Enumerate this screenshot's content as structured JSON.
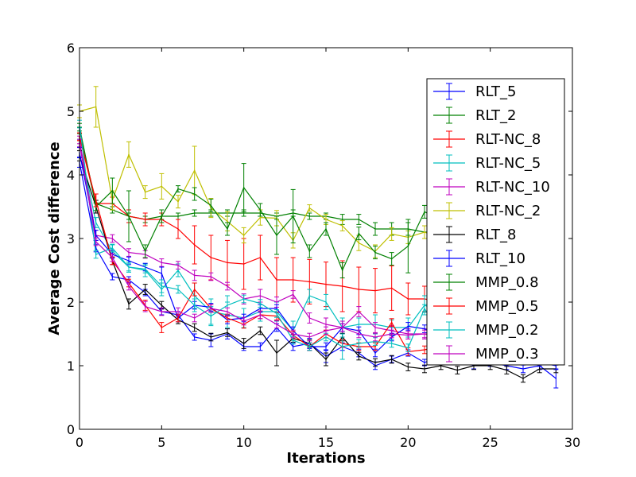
{
  "chart_data": {
    "type": "line",
    "title": "",
    "xlabel": "Iterations",
    "ylabel": "Average Cost difference",
    "xlim": [
      0,
      30
    ],
    "ylim": [
      0,
      6
    ],
    "xticks": [
      0,
      5,
      10,
      15,
      20,
      25,
      30
    ],
    "yticks": [
      0,
      1,
      2,
      3,
      4,
      5,
      6
    ],
    "error_bars": true,
    "grid": false,
    "legend_position": "upper right",
    "x": [
      0,
      1,
      2,
      3,
      4,
      5,
      6,
      7,
      8,
      9,
      10,
      11,
      12,
      13,
      14,
      15,
      16,
      17,
      18,
      19,
      20,
      21,
      22,
      23,
      24,
      25,
      26,
      27,
      28,
      29
    ],
    "series": [
      {
        "name": "RLT_5",
        "color": "#0000ff",
        "values": [
          4.2,
          2.85,
          2.4,
          2.35,
          2.15,
          1.85,
          1.8,
          1.45,
          1.4,
          1.5,
          1.3,
          1.3,
          1.6,
          1.3,
          1.35,
          1.15,
          1.3,
          1.2,
          1.0,
          1.1,
          1.2,
          1.05,
          1.15,
          1.1,
          1.0,
          1.05,
          1.0,
          0.95,
          1.0,
          0.8
        ],
        "errors": [
          0.08,
          0.06,
          0.05,
          0.05,
          0.05,
          0.05,
          0.05,
          0.05,
          0.1,
          0.08,
          0.06,
          0.06,
          0.06,
          0.06,
          0.08,
          0.1,
          0.06,
          0.06,
          0.06,
          0.05,
          0.05,
          0.05,
          0.06,
          0.06,
          0.05,
          0.06,
          0.06,
          0.06,
          0.06,
          0.15
        ]
      },
      {
        "name": "RLT_2",
        "color": "#008000",
        "values": [
          4.7,
          3.55,
          3.45,
          3.35,
          3.3,
          3.35,
          3.35,
          3.4,
          3.4,
          3.4,
          3.4,
          3.4,
          3.35,
          3.4,
          3.35,
          3.35,
          3.3,
          3.3,
          3.15,
          3.15,
          3.15,
          3.1,
          3.1,
          3.05,
          3.05,
          3.0,
          3.0,
          2.95,
          2.95,
          2.9
        ],
        "errors": [
          0.05,
          0.05,
          0.05,
          0.05,
          0.05,
          0.05,
          0.05,
          0.05,
          0.05,
          0.05,
          0.05,
          0.05,
          0.05,
          0.05,
          0.05,
          0.05,
          0.08,
          0.08,
          0.1,
          0.1,
          0.1,
          0.1,
          0.1,
          0.1,
          0.1,
          0.1,
          0.1,
          0.1,
          0.1,
          0.1
        ]
      },
      {
        "name": "RLT-NC_8",
        "color": "#ff0000",
        "values": [
          4.6,
          3.55,
          3.55,
          3.35,
          3.3,
          3.3,
          3.15,
          2.9,
          2.7,
          2.62,
          2.6,
          2.7,
          2.35,
          2.35,
          2.32,
          2.28,
          2.25,
          2.2,
          2.18,
          2.22,
          2.05,
          2.05,
          2.0,
          1.95,
          1.95,
          1.9,
          1.9,
          1.88,
          1.85,
          1.85
        ],
        "errors": [
          0.06,
          0.15,
          0.1,
          0.1,
          0.1,
          0.1,
          0.15,
          0.3,
          0.35,
          0.35,
          0.4,
          0.35,
          0.35,
          0.35,
          0.35,
          0.35,
          0.4,
          0.35,
          0.35,
          0.35,
          0.25,
          0.2,
          0.2,
          0.2,
          0.2,
          0.2,
          0.2,
          0.2,
          0.2,
          0.2
        ]
      },
      {
        "name": "RLT-NC_5",
        "color": "#00bfbf",
        "values": [
          4.5,
          3.25,
          2.8,
          2.55,
          2.5,
          2.2,
          2.5,
          2.1,
          1.85,
          1.8,
          1.75,
          1.85,
          1.85,
          1.55,
          2.1,
          2.0,
          1.6,
          1.65,
          1.65,
          1.6,
          1.6,
          1.95,
          1.85,
          1.6,
          1.6,
          1.55,
          1.55,
          1.5,
          1.55,
          1.5
        ],
        "errors": [
          0.06,
          0.08,
          0.1,
          0.08,
          0.1,
          0.1,
          0.1,
          0.2,
          0.2,
          0.2,
          0.15,
          0.15,
          0.15,
          0.15,
          0.1,
          0.12,
          0.15,
          0.1,
          0.15,
          0.12,
          0.15,
          0.15,
          0.12,
          0.12,
          0.12,
          0.12,
          0.12,
          0.12,
          0.12,
          0.12
        ]
      },
      {
        "name": "RLT-NC_10",
        "color": "#bf00bf",
        "values": [
          4.55,
          3.05,
          3.0,
          2.78,
          2.75,
          2.62,
          2.58,
          2.42,
          2.4,
          2.25,
          2.05,
          2.1,
          2.0,
          2.12,
          1.75,
          1.65,
          1.6,
          1.85,
          1.6,
          1.55,
          1.5,
          1.5,
          1.45,
          1.45,
          1.4,
          1.4,
          1.4,
          1.35,
          1.35,
          1.35
        ],
        "errors": [
          0.06,
          0.08,
          0.06,
          0.06,
          0.06,
          0.06,
          0.06,
          0.08,
          0.06,
          0.06,
          0.08,
          0.1,
          0.08,
          0.06,
          0.08,
          0.1,
          0.1,
          0.08,
          0.08,
          0.08,
          0.08,
          0.08,
          0.08,
          0.08,
          0.08,
          0.08,
          0.08,
          0.08,
          0.08,
          0.08
        ]
      },
      {
        "name": "RLT-NC_2",
        "color": "#bfbf00",
        "values": [
          5.0,
          5.07,
          3.6,
          4.32,
          3.73,
          3.82,
          3.58,
          4.07,
          3.48,
          3.27,
          3.05,
          3.33,
          3.32,
          2.97,
          3.48,
          3.3,
          3.2,
          2.93,
          2.8,
          3.07,
          3.02,
          3.1,
          3.0,
          2.95,
          2.95,
          2.95,
          2.9,
          2.9,
          2.85,
          2.85
        ],
        "errors": [
          0.1,
          0.32,
          0.15,
          0.2,
          0.1,
          0.2,
          0.1,
          0.38,
          0.15,
          0.15,
          0.12,
          0.12,
          0.12,
          0.12,
          0.05,
          0.08,
          0.08,
          0.12,
          0.1,
          0.1,
          0.1,
          0.1,
          0.1,
          0.1,
          0.1,
          0.1,
          0.1,
          0.1,
          0.1,
          0.1
        ]
      },
      {
        "name": "RLT_8",
        "color": "#000000",
        "values": [
          4.3,
          3.5,
          2.65,
          1.97,
          2.2,
          1.95,
          1.72,
          1.6,
          1.45,
          1.52,
          1.35,
          1.55,
          1.2,
          1.43,
          1.35,
          1.1,
          1.45,
          1.15,
          1.05,
          1.1,
          0.98,
          0.95,
          1.0,
          0.93,
          1.0,
          1.0,
          0.93,
          0.8,
          0.95,
          0.95
        ],
        "errors": [
          0.08,
          0.1,
          0.06,
          0.08,
          0.08,
          0.06,
          0.06,
          0.06,
          0.06,
          0.06,
          0.08,
          0.06,
          0.2,
          0.06,
          0.06,
          0.1,
          0.06,
          0.06,
          0.06,
          0.06,
          0.06,
          0.06,
          0.06,
          0.06,
          0.06,
          0.06,
          0.06,
          0.06,
          0.06,
          0.06
        ]
      },
      {
        "name": "RLT_10",
        "color": "#0000ff",
        "values": [
          4.35,
          3.05,
          2.75,
          2.65,
          2.55,
          2.45,
          1.75,
          1.95,
          1.92,
          1.72,
          1.75,
          1.9,
          1.9,
          1.55,
          1.3,
          1.3,
          1.6,
          1.55,
          1.2,
          1.45,
          1.62,
          1.58,
          1.45,
          1.3,
          1.2,
          1.15,
          1.1,
          1.1,
          1.05,
          1.0
        ],
        "errors": [
          0.08,
          0.08,
          0.06,
          0.06,
          0.06,
          0.1,
          0.06,
          0.06,
          0.06,
          0.06,
          0.06,
          0.06,
          0.06,
          0.06,
          0.06,
          0.06,
          0.06,
          0.06,
          0.06,
          0.06,
          0.06,
          0.06,
          0.06,
          0.06,
          0.06,
          0.06,
          0.06,
          0.06,
          0.06,
          0.06
        ]
      },
      {
        "name": "MMP_0.8",
        "color": "#008000",
        "values": [
          4.75,
          3.5,
          3.75,
          3.35,
          2.8,
          3.35,
          3.78,
          3.7,
          3.52,
          3.15,
          3.8,
          3.45,
          3.05,
          3.35,
          2.8,
          3.15,
          2.5,
          3.08,
          2.78,
          2.68,
          2.88,
          3.42,
          3.3,
          3.2,
          3.1,
          3.05,
          3.0,
          3.0,
          2.95,
          2.95
        ],
        "errors": [
          0.06,
          0.06,
          0.2,
          0.4,
          0.1,
          0.1,
          0.05,
          0.1,
          0.1,
          0.1,
          0.38,
          0.1,
          0.3,
          0.42,
          0.1,
          0.1,
          0.12,
          0.1,
          0.1,
          0.1,
          0.42,
          0.1,
          0.1,
          0.1,
          0.1,
          0.1,
          0.1,
          0.1,
          0.1,
          0.1
        ]
      },
      {
        "name": "MMP_0.5",
        "color": "#ff0000",
        "values": [
          4.6,
          3.6,
          2.65,
          2.3,
          1.95,
          1.6,
          1.75,
          2.2,
          1.9,
          1.75,
          1.65,
          1.8,
          1.78,
          1.48,
          1.3,
          1.5,
          1.35,
          1.3,
          1.3,
          1.68,
          1.22,
          1.25,
          1.3,
          1.35,
          1.3,
          1.3,
          1.35,
          1.3,
          1.3,
          1.3
        ],
        "errors": [
          0.06,
          0.1,
          0.06,
          0.06,
          0.08,
          0.08,
          0.06,
          0.1,
          0.06,
          0.06,
          0.06,
          0.06,
          0.06,
          0.06,
          0.06,
          0.06,
          0.06,
          0.06,
          0.06,
          0.06,
          0.06,
          0.06,
          0.06,
          0.06,
          0.06,
          0.06,
          0.06,
          0.06,
          0.06,
          0.06
        ]
      },
      {
        "name": "MMP_0.2",
        "color": "#00bfbf",
        "values": [
          4.8,
          2.75,
          2.85,
          2.55,
          2.52,
          2.25,
          2.2,
          1.95,
          1.78,
          1.95,
          2.05,
          1.98,
          1.82,
          1.4,
          1.3,
          1.45,
          1.3,
          1.35,
          1.38,
          1.35,
          1.28,
          1.9,
          1.45,
          1.4,
          1.35,
          1.3,
          1.3,
          1.3,
          1.25,
          1.25
        ],
        "errors": [
          0.06,
          0.06,
          0.06,
          0.06,
          0.06,
          0.1,
          0.06,
          0.1,
          0.15,
          0.15,
          0.06,
          0.06,
          0.06,
          0.06,
          0.06,
          0.06,
          0.2,
          0.06,
          0.06,
          0.06,
          0.06,
          0.06,
          0.06,
          0.06,
          0.06,
          0.06,
          0.06,
          0.06,
          0.06,
          0.06
        ]
      },
      {
        "name": "MMP_0.3",
        "color": "#bf00bf",
        "values": [
          4.5,
          2.95,
          2.7,
          2.25,
          1.93,
          1.85,
          1.85,
          1.75,
          1.9,
          1.85,
          1.7,
          1.8,
          1.65,
          1.5,
          1.45,
          1.55,
          1.6,
          1.5,
          1.45,
          1.5,
          1.48,
          1.5,
          1.5,
          1.45,
          1.45,
          1.4,
          1.4,
          1.4,
          1.4,
          1.35
        ],
        "errors": [
          0.06,
          0.06,
          0.06,
          0.06,
          0.08,
          0.06,
          0.06,
          0.06,
          0.06,
          0.06,
          0.06,
          0.06,
          0.06,
          0.06,
          0.06,
          0.06,
          0.06,
          0.06,
          0.06,
          0.06,
          0.06,
          0.06,
          0.06,
          0.06,
          0.06,
          0.06,
          0.06,
          0.06,
          0.06,
          0.06
        ]
      }
    ]
  }
}
